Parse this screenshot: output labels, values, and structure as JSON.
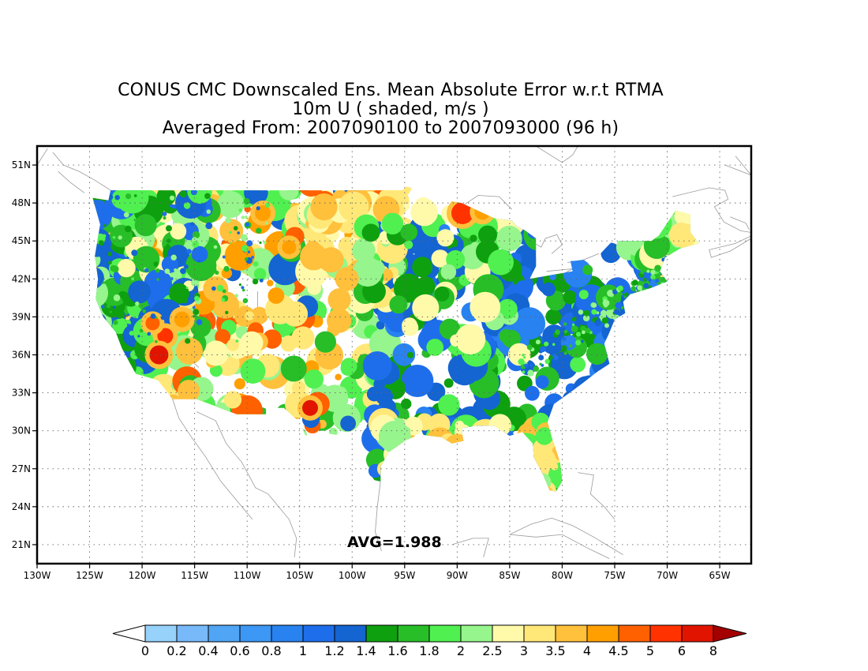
{
  "title": {
    "line1": "CONUS CMC Downscaled Ens. Mean Absolute Error w.r.t RTMA",
    "line2": "10m U ( shaded, m/s )",
    "line3": "Averaged From: 2007090100 to 2007093000 (96 h)"
  },
  "map": {
    "lon_range": [
      -130,
      -62
    ],
    "lat_range": [
      19.5,
      52.5
    ],
    "lon_ticks": [
      "130W",
      "125W",
      "120W",
      "115W",
      "110W",
      "105W",
      "100W",
      "95W",
      "90W",
      "85W",
      "80W",
      "75W",
      "70W",
      "65W"
    ],
    "lat_ticks": [
      "51N",
      "48N",
      "45N",
      "42N",
      "39N",
      "36N",
      "33N",
      "30N",
      "27N",
      "24N",
      "21N"
    ],
    "grid": "dotted",
    "avg_label": "AVG=1.988"
  },
  "colorbar": {
    "labels": [
      "0",
      "0.2",
      "0.4",
      "0.6",
      "0.8",
      "1",
      "1.2",
      "1.4",
      "1.6",
      "1.8",
      "2",
      "2.5",
      "3",
      "3.5",
      "4",
      "4.5",
      "5",
      "6",
      "8"
    ],
    "colors": [
      "#96d2fa",
      "#78b9fa",
      "#50a5f5",
      "#3c97f5",
      "#2882f0",
      "#1e6eeb",
      "#1464d2",
      "#0fa00f",
      "#28be28",
      "#50f050",
      "#96f58c",
      "#fffaaa",
      "#ffe878",
      "#ffc03c",
      "#ffa000",
      "#ff6000",
      "#ff3200",
      "#e11400",
      "#a50000"
    ],
    "under_color": "#ffffff",
    "over_color": "#a50000"
  }
}
